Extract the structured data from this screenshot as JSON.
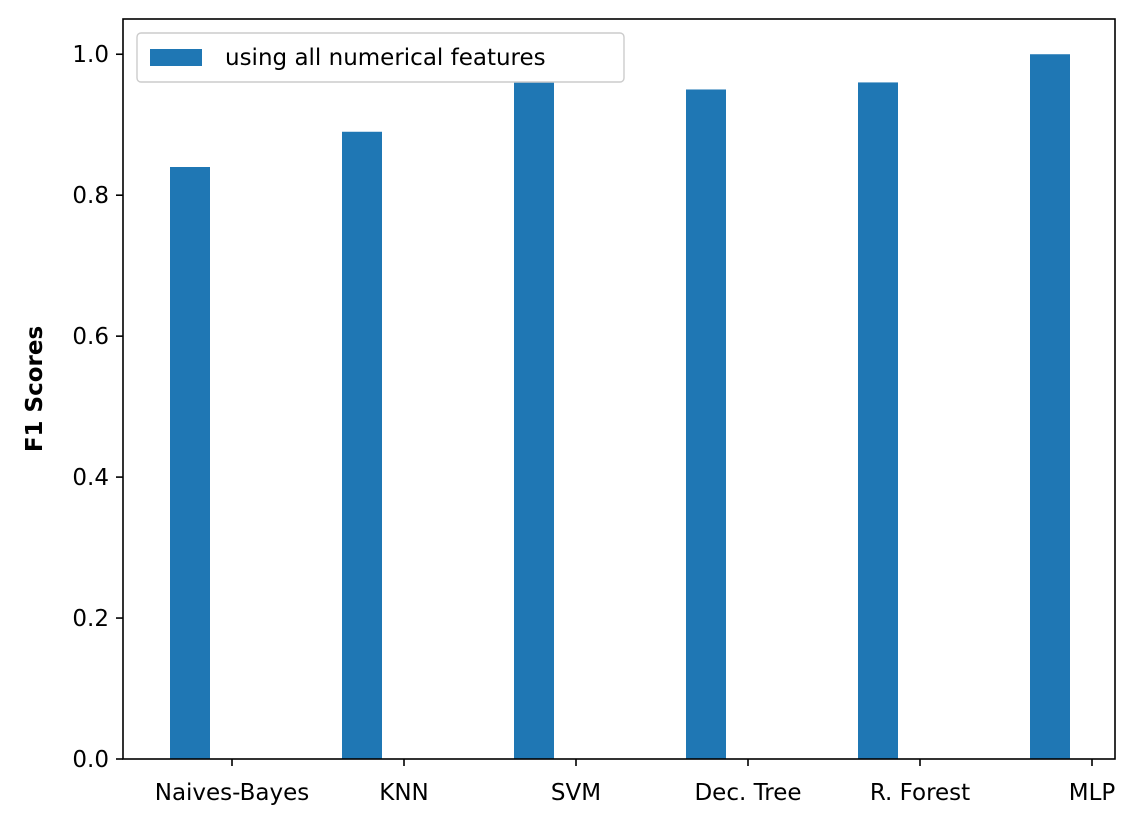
{
  "chart_data": {
    "type": "bar",
    "title": "",
    "xlabel": "",
    "ylabel": "F1 Scores",
    "categories": [
      "Naives-Bayes",
      "KNN",
      "SVM",
      "Dec. Tree",
      "R. Forest",
      "MLP"
    ],
    "series": [
      {
        "name": "using all numerical features",
        "values": [
          0.84,
          0.89,
          0.96,
          0.95,
          0.96,
          1.0
        ],
        "color": "#1f77b4"
      }
    ],
    "ylim": [
      0,
      1.05
    ],
    "yticks": [
      "0.0",
      "0.2",
      "0.4",
      "0.6",
      "0.8",
      "1.0"
    ],
    "grid": false,
    "legend_position": "upper-left"
  }
}
